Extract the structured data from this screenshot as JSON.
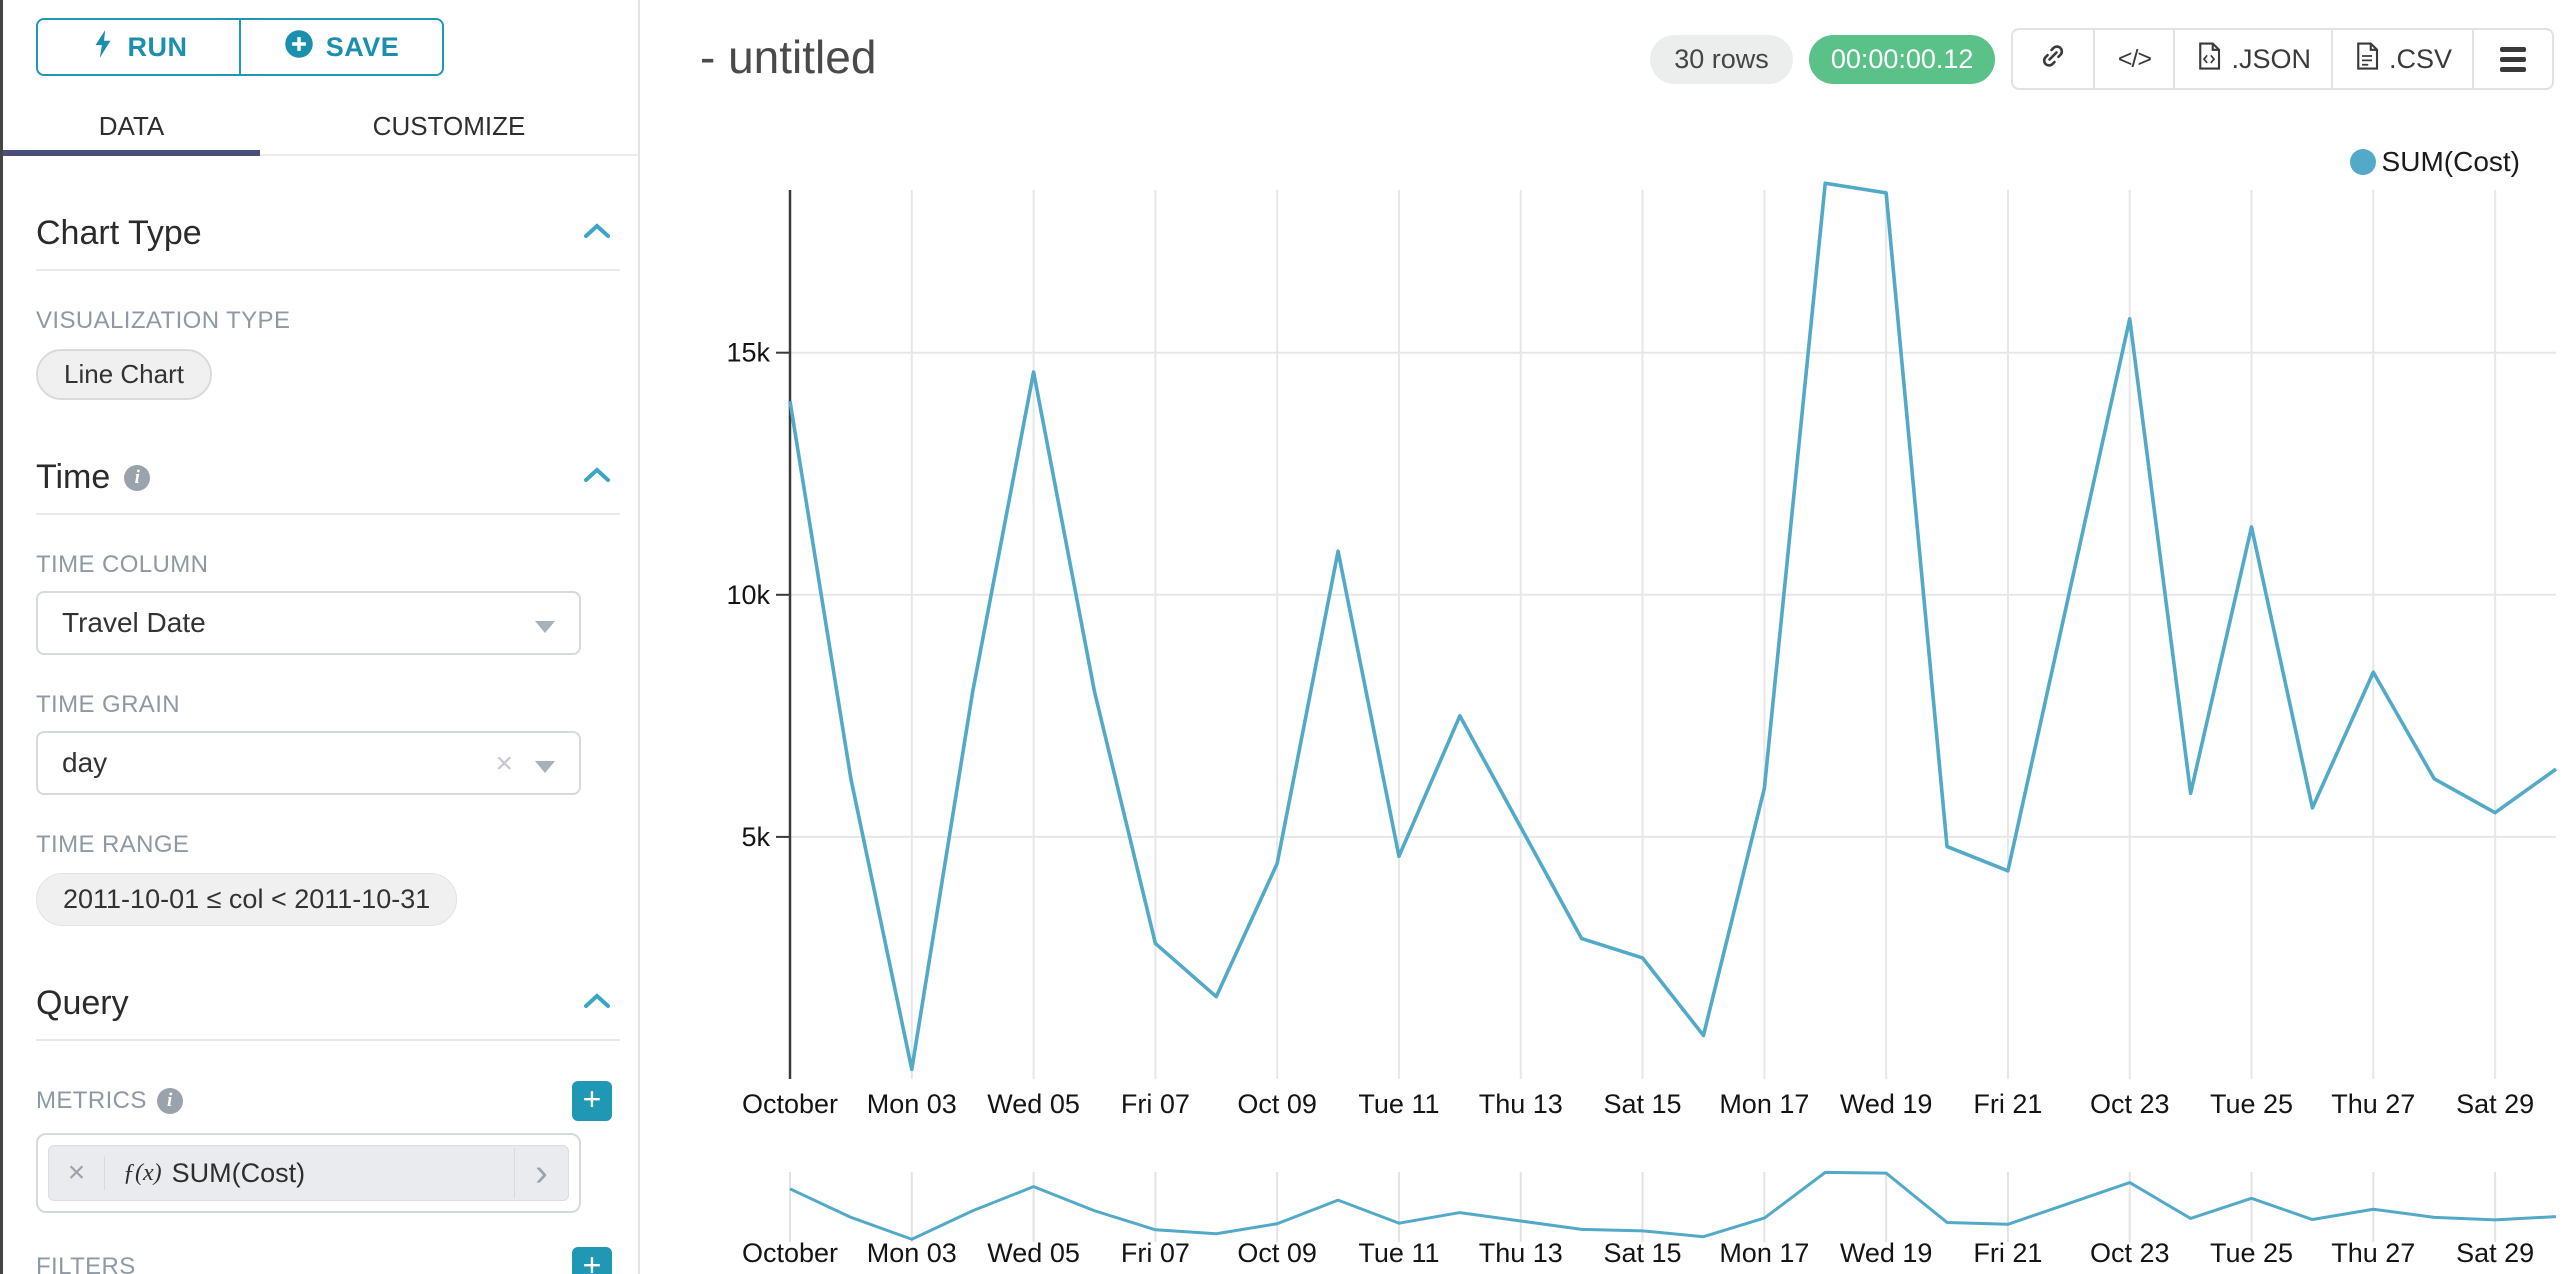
{
  "sidebar": {
    "run_button": "RUN",
    "save_button": "SAVE",
    "tabs": {
      "data": "DATA",
      "customize": "CUSTOMIZE"
    },
    "chart_type": {
      "title": "Chart Type",
      "viz_type_label": "VISUALIZATION TYPE",
      "viz_type_value": "Line Chart"
    },
    "time": {
      "title": "Time",
      "time_column_label": "TIME COLUMN",
      "time_column_value": "Travel Date",
      "time_grain_label": "TIME GRAIN",
      "time_grain_value": "day",
      "time_range_label": "TIME RANGE",
      "time_range_value": "2011-10-01 ≤ col < 2011-10-31"
    },
    "query": {
      "title": "Query",
      "metrics_label": "METRICS",
      "metric_fx": "ƒ(x)",
      "metric_value": "SUM(Cost)",
      "filters_label": "FILTERS"
    }
  },
  "header": {
    "title": "- untitled",
    "rows_badge": "30 rows",
    "timer_badge": "00:00:00.12",
    "export_json_label": ".JSON",
    "export_csv_label": ".CSV"
  },
  "chart_data": {
    "type": "line",
    "title": "",
    "legend": [
      {
        "name": "SUM(Cost)",
        "color": "#52a9c8"
      }
    ],
    "xlabel": "",
    "ylabel": "",
    "categories": [
      "2011-10-01",
      "2011-10-02",
      "2011-10-03",
      "2011-10-04",
      "2011-10-05",
      "2011-10-06",
      "2011-10-07",
      "2011-10-08",
      "2011-10-09",
      "2011-10-10",
      "2011-10-11",
      "2011-10-12",
      "2011-10-13",
      "2011-10-14",
      "2011-10-15",
      "2011-10-16",
      "2011-10-17",
      "2011-10-18",
      "2011-10-19",
      "2011-10-20",
      "2011-10-21",
      "2011-10-22",
      "2011-10-23",
      "2011-10-24",
      "2011-10-25",
      "2011-10-26",
      "2011-10-27",
      "2011-10-28",
      "2011-10-29",
      "2011-10-30"
    ],
    "series": [
      {
        "name": "SUM(Cost)",
        "values": [
          14000,
          6200,
          200,
          8000,
          14600,
          8000,
          2800,
          1700,
          4450,
          10900,
          4600,
          7500,
          5200,
          2900,
          2500,
          900,
          6000,
          18500,
          18300,
          4800,
          4300,
          10000,
          15700,
          5900,
          11400,
          5600,
          8400,
          6200,
          5500,
          6400
        ]
      }
    ],
    "x_tick_labels": [
      "October",
      "Mon 03",
      "Wed 05",
      "Fri 07",
      "Oct 09",
      "Tue 11",
      "Thu 13",
      "Sat 15",
      "Mon 17",
      "Wed 19",
      "Fri 21",
      "Oct 23",
      "Tue 25",
      "Thu 27",
      "Sat 29"
    ],
    "y_ticks": [
      {
        "label": "5k",
        "value": 5000
      },
      {
        "label": "10k",
        "value": 10000
      },
      {
        "label": "15k",
        "value": 15000
      }
    ],
    "ylim": [
      0,
      18600
    ],
    "grid": true,
    "legend_position": "top-right",
    "has_context_brush_chart": true
  }
}
